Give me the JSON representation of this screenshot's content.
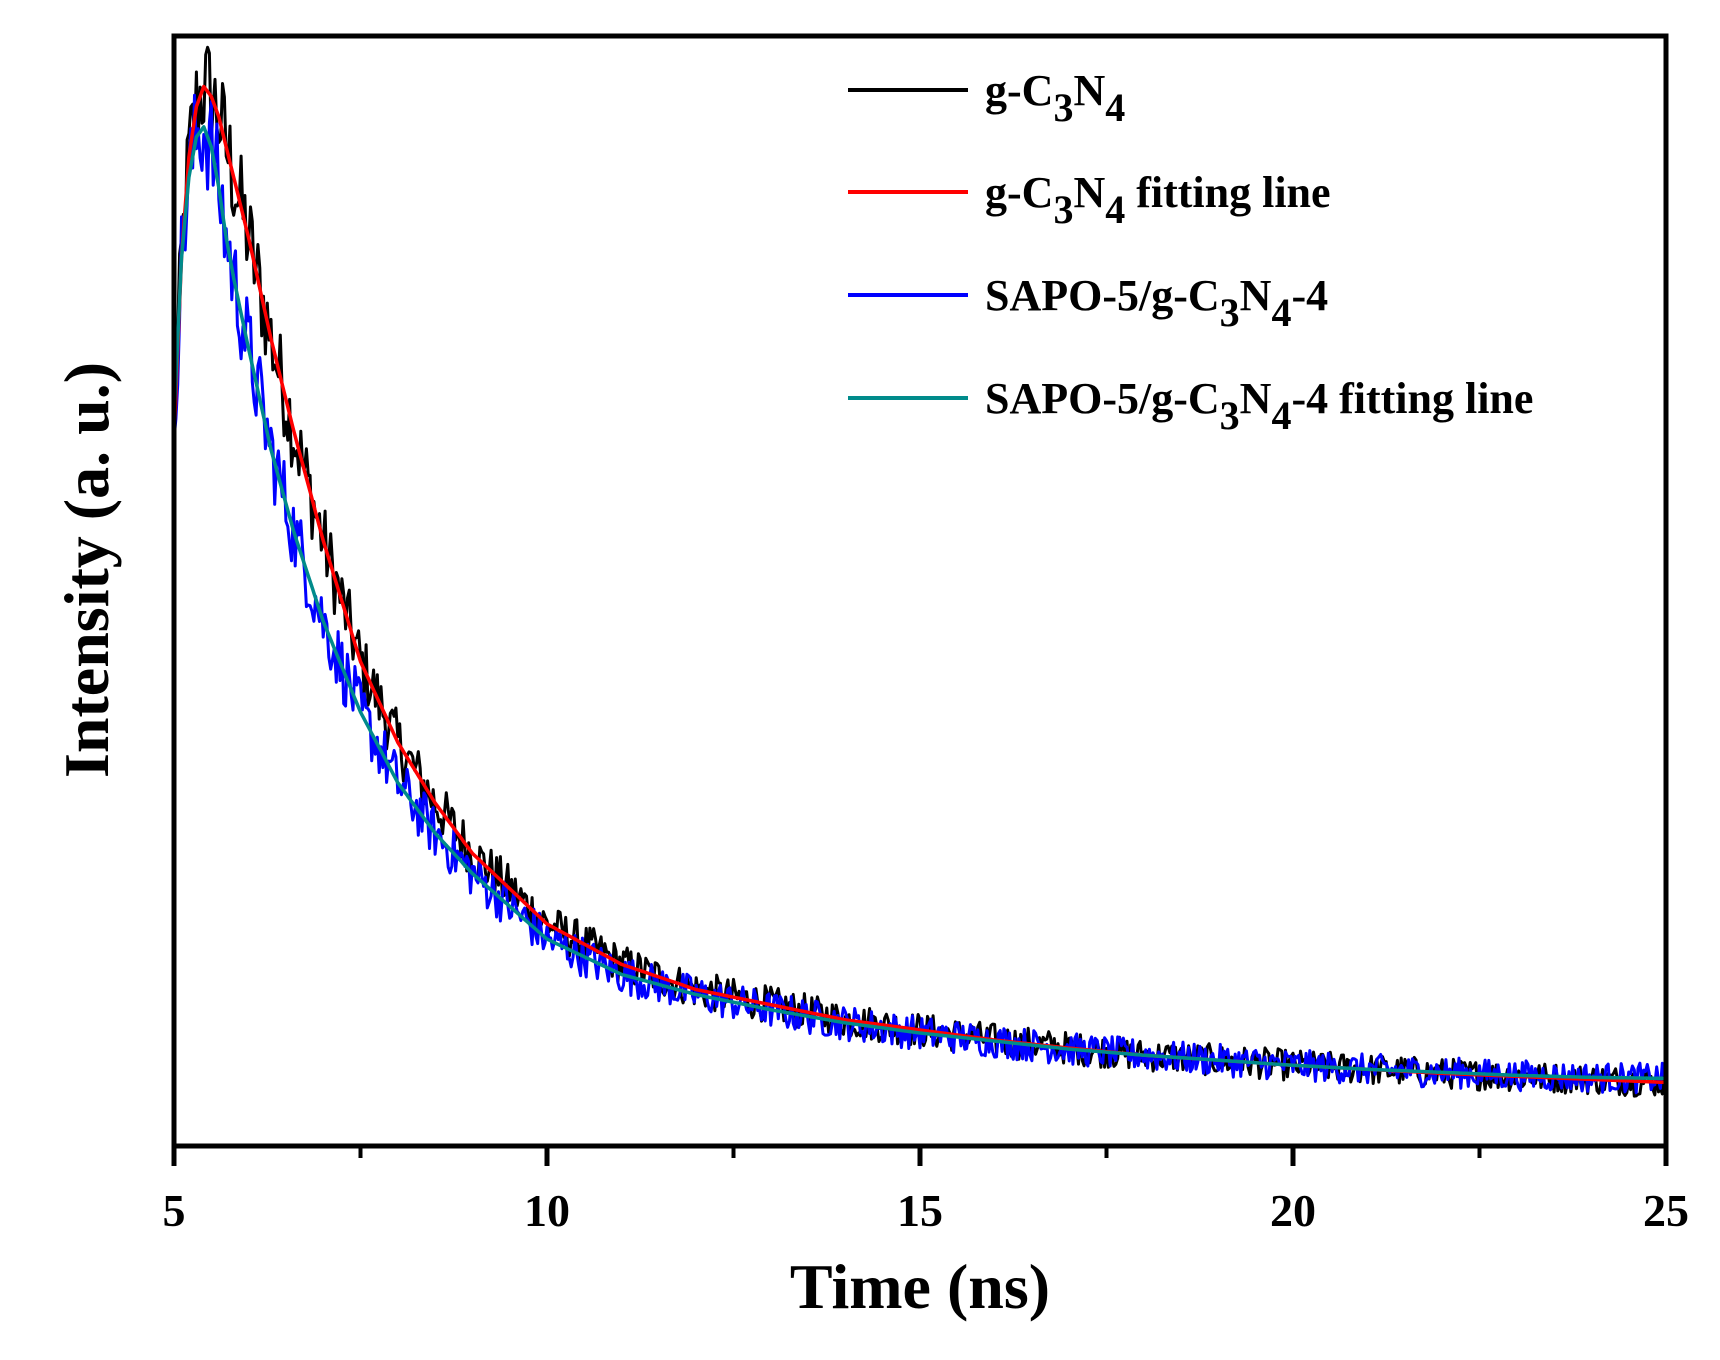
{
  "chart_data": {
    "type": "line",
    "title": "",
    "xlabel": "Time (ns)",
    "ylabel": "Intensity (a. u.)",
    "xlim": [
      5,
      25
    ],
    "ylim": [
      0,
      1.1
    ],
    "x_ticks": [
      5,
      10,
      15,
      20,
      25
    ],
    "x_tick_labels": [
      "5",
      "10",
      "15",
      "20",
      "25"
    ],
    "y_ticks_labeled": false,
    "grid": false,
    "legend_position": "top-right",
    "series": [
      {
        "name": "g-C3N4",
        "legend_parts": [
          [
            "g-C",
            "normal"
          ],
          [
            "3",
            "sub"
          ],
          [
            "N",
            "normal"
          ],
          [
            "4",
            "sub"
          ]
        ],
        "color": "#000000",
        "style": "noisy",
        "x": [
          5.0,
          5.1,
          5.2,
          5.3,
          5.4,
          5.5,
          5.6,
          5.7,
          5.8,
          6.0,
          6.3,
          6.6,
          7.0,
          7.5,
          8.0,
          8.5,
          9.0,
          10.0,
          11.0,
          12.0,
          13.0,
          14.0,
          15.0,
          16.0,
          17.0,
          18.0,
          19.0,
          20.0,
          21.0,
          22.0,
          23.0,
          24.0,
          25.0
        ],
        "y": [
          0.7,
          0.88,
          0.98,
          1.03,
          1.05,
          1.04,
          1.02,
          0.99,
          0.96,
          0.9,
          0.8,
          0.71,
          0.6,
          0.48,
          0.4,
          0.34,
          0.29,
          0.22,
          0.18,
          0.155,
          0.14,
          0.125,
          0.115,
          0.105,
          0.097,
          0.09,
          0.085,
          0.08,
          0.076,
          0.072,
          0.069,
          0.066,
          0.063
        ]
      },
      {
        "name": "g-C3N4 fitting line",
        "legend_parts": [
          [
            "g-C",
            "normal"
          ],
          [
            "3",
            "sub"
          ],
          [
            "N",
            "normal"
          ],
          [
            "4",
            "sub"
          ],
          [
            " fitting line",
            "normal"
          ]
        ],
        "color": "#ff0000",
        "style": "smooth",
        "x": [
          5.0,
          5.1,
          5.2,
          5.3,
          5.4,
          5.5,
          5.6,
          5.7,
          5.8,
          6.0,
          6.3,
          6.6,
          7.0,
          7.5,
          8.0,
          8.5,
          9.0,
          10.0,
          11.0,
          12.0,
          13.0,
          14.0,
          15.0,
          16.0,
          17.0,
          18.0,
          19.0,
          20.0,
          21.0,
          22.0,
          23.0,
          24.0,
          25.0
        ],
        "y": [
          0.7,
          0.88,
          0.98,
          1.03,
          1.05,
          1.04,
          1.02,
          0.99,
          0.96,
          0.9,
          0.8,
          0.71,
          0.6,
          0.48,
          0.4,
          0.34,
          0.29,
          0.22,
          0.18,
          0.155,
          0.14,
          0.125,
          0.115,
          0.105,
          0.097,
          0.09,
          0.085,
          0.08,
          0.076,
          0.072,
          0.069,
          0.066,
          0.063
        ]
      },
      {
        "name": "SAPO-5/g-C3N4-4",
        "legend_parts": [
          [
            "SAPO-5/g-C",
            "normal"
          ],
          [
            "3",
            "sub"
          ],
          [
            "N",
            "normal"
          ],
          [
            "4",
            "sub"
          ],
          [
            "-4",
            "normal"
          ]
        ],
        "color": "#0000ff",
        "style": "noisy",
        "x": [
          5.0,
          5.1,
          5.2,
          5.3,
          5.4,
          5.5,
          5.6,
          5.7,
          5.8,
          6.0,
          6.3,
          6.6,
          7.0,
          7.5,
          8.0,
          8.5,
          9.0,
          10.0,
          11.0,
          12.0,
          13.0,
          14.0,
          15.0,
          16.0,
          17.0,
          18.0,
          19.0,
          20.0,
          21.0,
          22.0,
          23.0,
          24.0,
          25.0
        ],
        "y": [
          0.72,
          0.88,
          0.96,
          1.0,
          1.01,
          0.99,
          0.95,
          0.9,
          0.86,
          0.79,
          0.69,
          0.61,
          0.52,
          0.43,
          0.36,
          0.31,
          0.27,
          0.205,
          0.17,
          0.15,
          0.135,
          0.122,
          0.112,
          0.104,
          0.096,
          0.09,
          0.085,
          0.08,
          0.076,
          0.073,
          0.07,
          0.068,
          0.067
        ]
      },
      {
        "name": "SAPO-5/g-C3N4-4 fitting line",
        "legend_parts": [
          [
            "SAPO-5/g-C",
            "normal"
          ],
          [
            "3",
            "sub"
          ],
          [
            "N",
            "normal"
          ],
          [
            "4",
            "sub"
          ],
          [
            "-4 fitting line",
            "normal"
          ]
        ],
        "color": "#008b8b",
        "style": "smooth",
        "x": [
          5.0,
          5.1,
          5.2,
          5.3,
          5.4,
          5.5,
          5.6,
          5.7,
          5.8,
          6.0,
          6.3,
          6.6,
          7.0,
          7.5,
          8.0,
          8.5,
          9.0,
          10.0,
          11.0,
          12.0,
          13.0,
          14.0,
          15.0,
          16.0,
          17.0,
          18.0,
          19.0,
          20.0,
          21.0,
          22.0,
          23.0,
          24.0,
          25.0
        ],
        "y": [
          0.72,
          0.88,
          0.96,
          1.0,
          1.01,
          0.99,
          0.95,
          0.9,
          0.86,
          0.79,
          0.69,
          0.61,
          0.52,
          0.43,
          0.36,
          0.31,
          0.27,
          0.205,
          0.17,
          0.15,
          0.135,
          0.122,
          0.112,
          0.104,
          0.096,
          0.09,
          0.085,
          0.08,
          0.076,
          0.073,
          0.07,
          0.068,
          0.067
        ]
      }
    ]
  }
}
